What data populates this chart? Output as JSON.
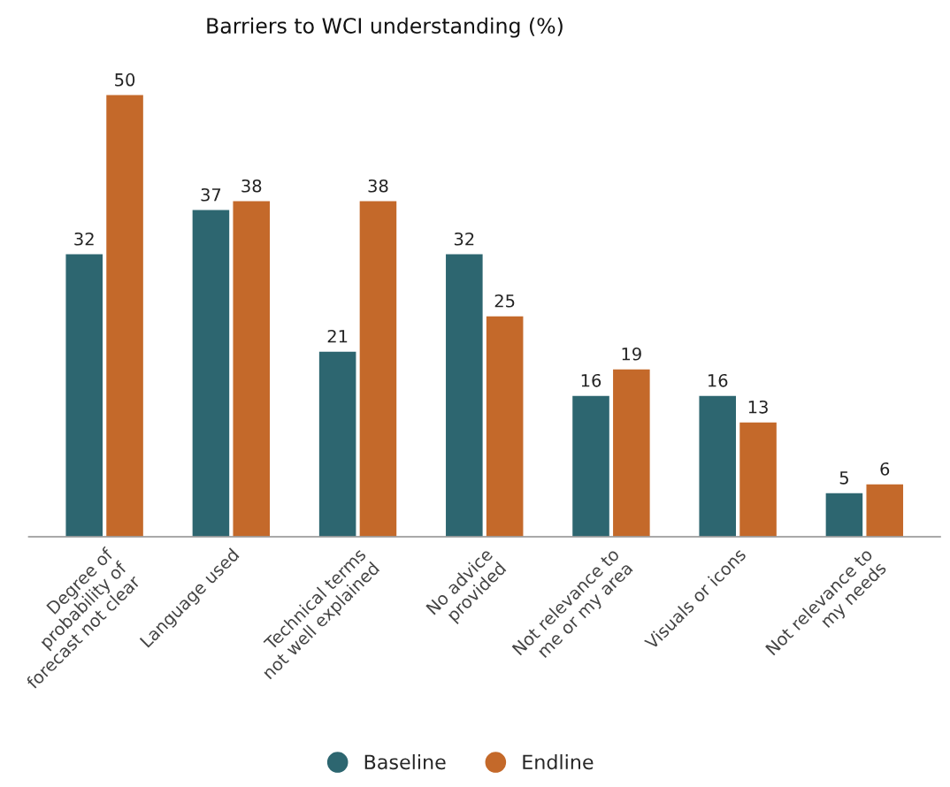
{
  "chart_data": {
    "type": "bar",
    "title": "Barriers to WCI understanding (%)",
    "categories": [
      "Degree of\nprobability of\nforecast not clear",
      "Language used",
      "Technical terms\nnot well explained",
      "No advice\nprovided",
      "Not relevance to\nme or my area",
      "Visuals or icons",
      "Not relevance to\nmy needs"
    ],
    "series": [
      {
        "name": "Baseline",
        "color": "#2d6670",
        "values": [
          32,
          37,
          21,
          32,
          16,
          16,
          5
        ]
      },
      {
        "name": "Endline",
        "color": "#c4692a",
        "values": [
          50,
          38,
          38,
          25,
          19,
          13,
          6
        ]
      }
    ],
    "data_labels": true,
    "legend": "bottom",
    "tick_labels": "x"
  }
}
